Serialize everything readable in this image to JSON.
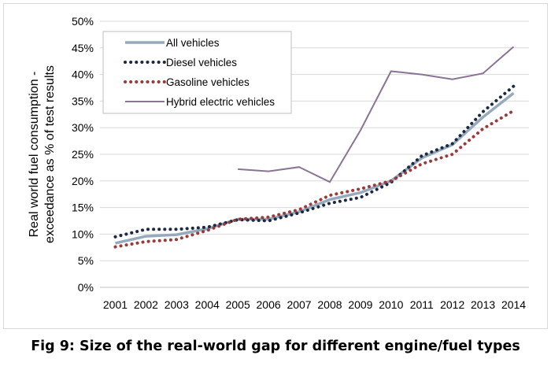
{
  "caption": "Fig 9: Size of the real-world gap for different engine/fuel types",
  "chart_data": {
    "type": "line",
    "title": "",
    "xlabel": "",
    "ylabel_lines": [
      "Real world fuel consumption -",
      "exceedance as % of test results"
    ],
    "ylim": [
      0,
      50
    ],
    "ytick_step": 5,
    "ytick_labels": [
      "0%",
      "5%",
      "10%",
      "15%",
      "20%",
      "25%",
      "30%",
      "35%",
      "40%",
      "45%",
      "50%"
    ],
    "grid": true,
    "legend_position": "top-left",
    "categories": [
      "2001",
      "2002",
      "2003",
      "2004",
      "2005",
      "2006",
      "2007",
      "2008",
      "2009",
      "2010",
      "2011",
      "2012",
      "2013",
      "2014"
    ],
    "series": [
      {
        "name": "All vehicles",
        "style": "solid-thick",
        "color": "#97a9bd",
        "values": [
          8.3,
          9.6,
          9.9,
          11.0,
          12.8,
          12.8,
          14.2,
          16.5,
          17.8,
          20.0,
          24.3,
          26.8,
          32.0,
          36.5
        ]
      },
      {
        "name": "Diesel vehicles",
        "style": "dotted",
        "color": "#1b2a42",
        "values": [
          9.5,
          10.9,
          10.9,
          11.3,
          12.7,
          12.5,
          14.0,
          15.8,
          16.9,
          19.7,
          24.7,
          27.0,
          33.0,
          37.8
        ]
      },
      {
        "name": "Gasoline vehicles",
        "style": "dotted",
        "color": "#9b3a3a",
        "values": [
          7.6,
          8.6,
          9.0,
          10.7,
          12.8,
          13.2,
          14.6,
          17.3,
          18.5,
          20.0,
          23.2,
          25.0,
          29.8,
          33.2
        ]
      },
      {
        "name": "Hybrid electric vehicles",
        "style": "solid-thin",
        "color": "#8a7495",
        "values": [
          null,
          null,
          null,
          null,
          22.2,
          21.8,
          22.6,
          19.8,
          29.5,
          40.6,
          40.0,
          39.1,
          40.2,
          45.2
        ]
      }
    ]
  }
}
